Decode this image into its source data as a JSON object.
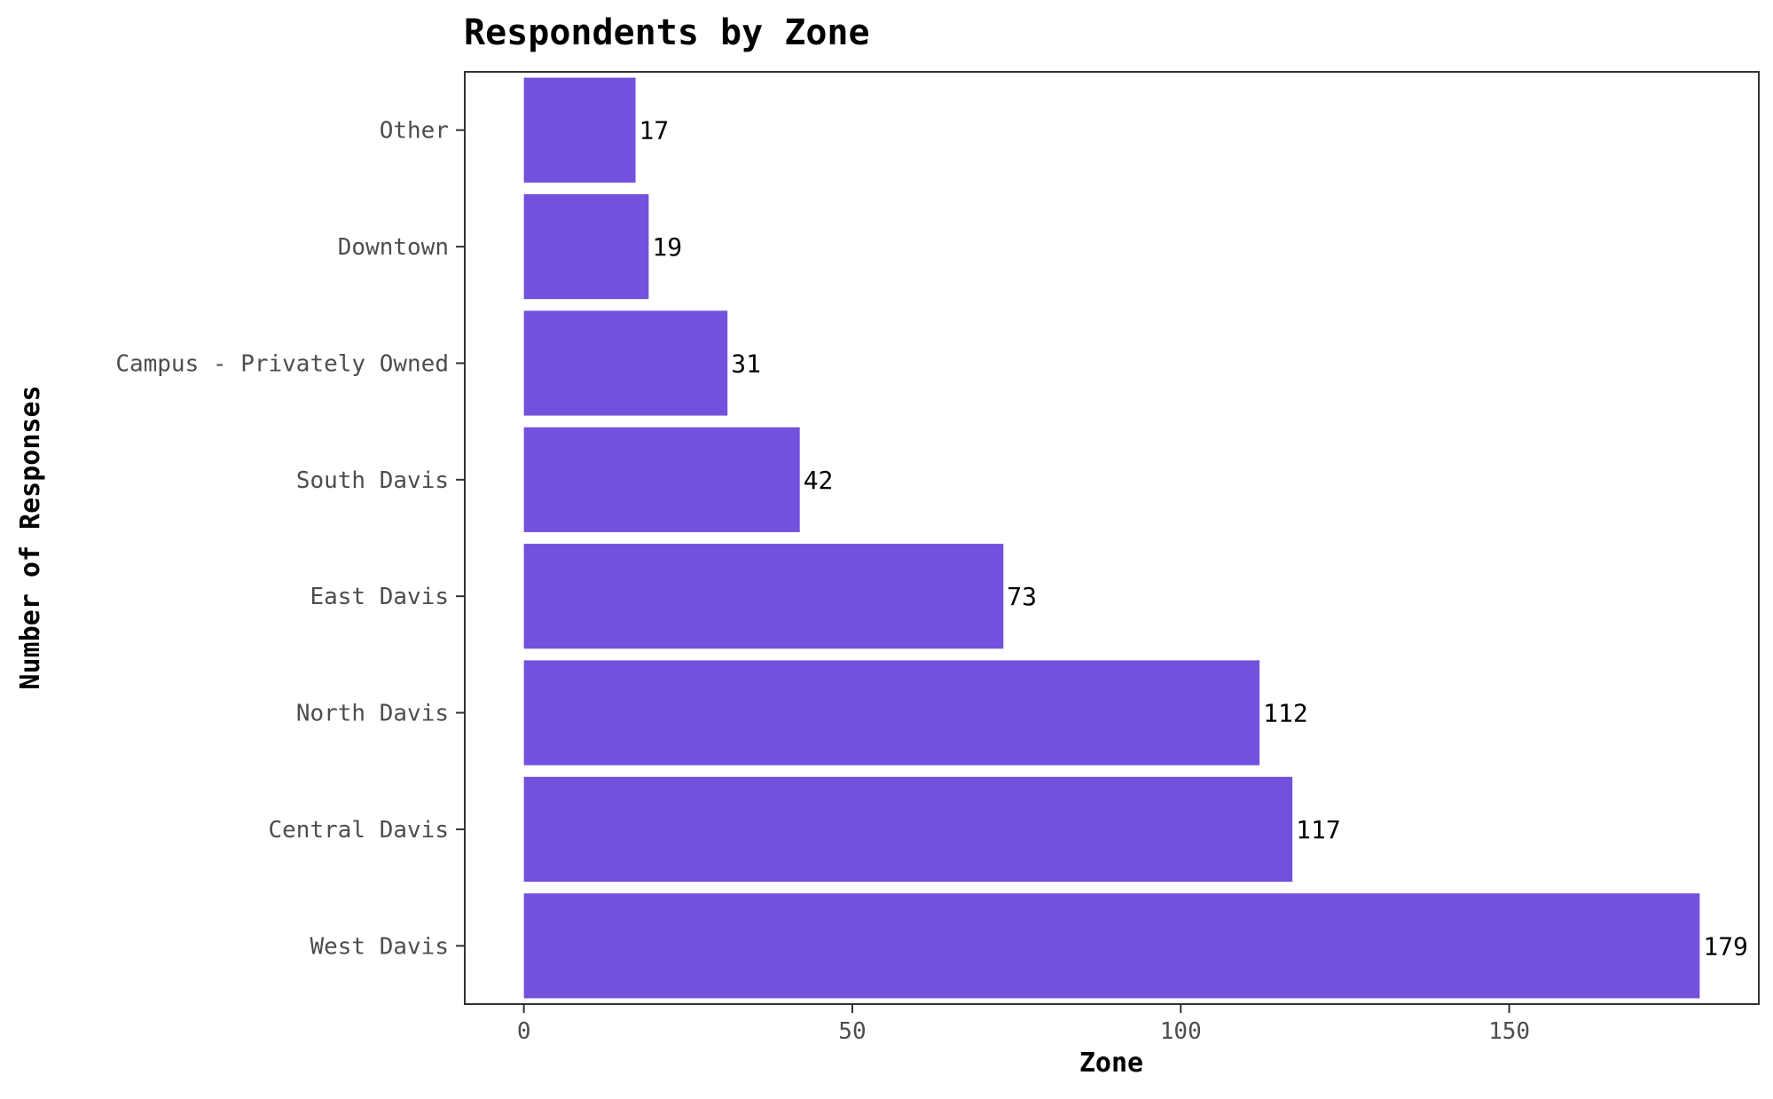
{
  "chart_data": {
    "type": "bar",
    "orientation": "horizontal",
    "title": "Respondents by Zone",
    "xlabel": "Zone",
    "ylabel": "Number of Responses",
    "categories": [
      "West Davis",
      "Central Davis",
      "North Davis",
      "East Davis",
      "South Davis",
      "Campus - Privately Owned",
      "Downtown",
      "Other"
    ],
    "values": [
      179,
      117,
      112,
      73,
      42,
      31,
      19,
      17
    ],
    "data_labels": [
      "179",
      "117",
      "112",
      "73",
      "42",
      "31",
      "19",
      "17"
    ],
    "xlim": [
      -9,
      188
    ],
    "xticks": [
      0,
      50,
      100,
      150
    ],
    "xtick_labels": [
      "0",
      "50",
      "100",
      "150"
    ],
    "grid": false,
    "legend": "none",
    "bar_color": "#7251DD",
    "panel_border_color": "#333333"
  }
}
